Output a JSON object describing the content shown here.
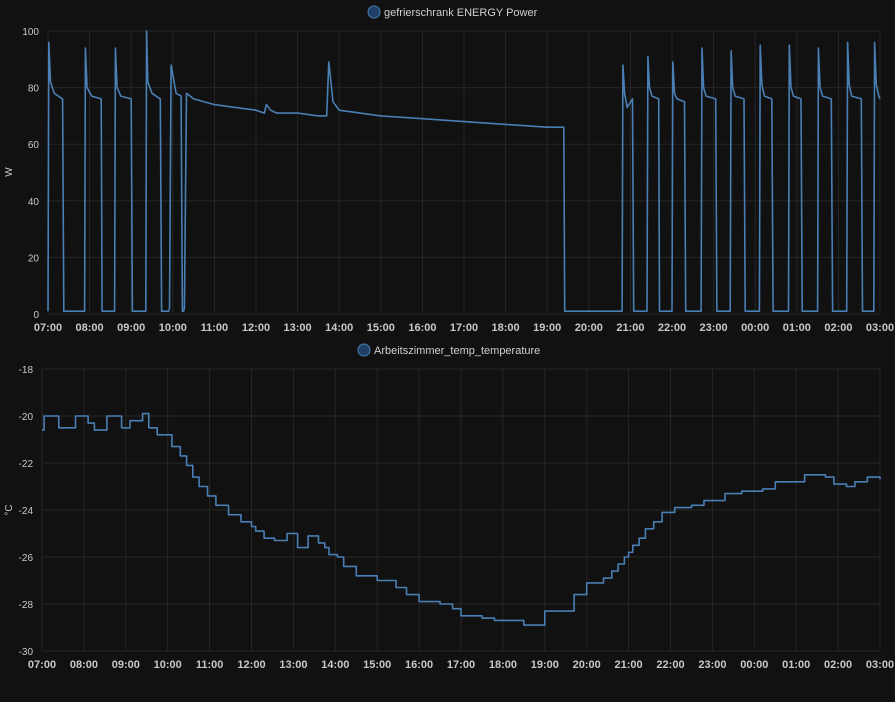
{
  "chart_data": [
    {
      "type": "line",
      "legend": "gefrierschrank ENERGY Power",
      "ylabel": "W",
      "ylim": [
        0,
        100
      ],
      "yticks": [
        0,
        20,
        40,
        60,
        80,
        100
      ],
      "xticks": [
        "07:00",
        "08:00",
        "09:00",
        "10:00",
        "11:00",
        "12:00",
        "13:00",
        "14:00",
        "15:00",
        "16:00",
        "17:00",
        "18:00",
        "19:00",
        "20:00",
        "21:00",
        "22:00",
        "23:00",
        "00:00",
        "01:00",
        "02:00",
        "03:00"
      ],
      "xlim_hours": [
        0,
        20
      ],
      "series": [
        {
          "color": "#4a7fb5",
          "x": [
            0.0,
            0.02,
            0.06,
            0.15,
            0.35,
            0.38,
            0.4,
            0.42,
            0.44,
            0.88,
            0.9,
            0.94,
            1.05,
            1.28,
            1.3,
            1.6,
            1.62,
            1.66,
            1.75,
            2.0,
            2.03,
            2.35,
            2.37,
            2.4,
            2.5,
            2.7,
            2.73,
            2.9,
            2.92,
            2.96,
            3.08,
            3.2,
            3.23,
            3.26,
            3.28,
            3.33,
            3.5,
            4.0,
            4.5,
            5.0,
            5.2,
            5.25,
            5.35,
            5.5,
            6.0,
            6.5,
            6.7,
            6.75,
            6.85,
            7.0,
            7.5,
            8.0,
            9.0,
            10.0,
            11.0,
            12.0,
            12.4,
            12.42,
            12.45,
            12.47,
            13.8,
            13.82,
            13.86,
            13.92,
            14.05,
            14.08,
            14.4,
            14.42,
            14.46,
            14.52,
            14.68,
            14.7,
            15.0,
            15.02,
            15.06,
            15.12,
            15.3,
            15.33,
            15.7,
            15.72,
            15.76,
            15.82,
            16.05,
            16.08,
            16.4,
            16.42,
            16.46,
            16.52,
            16.73,
            16.76,
            17.1,
            17.12,
            17.16,
            17.22,
            17.4,
            17.43,
            17.8,
            17.82,
            17.86,
            17.92,
            18.1,
            18.13,
            18.5,
            18.52,
            18.56,
            18.62,
            18.83,
            18.86,
            19.2,
            19.22,
            19.26,
            19.32,
            19.55,
            19.58,
            19.85,
            19.87,
            19.91,
            19.97,
            20.0
          ],
          "y": [
            1,
            96,
            82,
            78,
            76,
            1,
            1,
            1,
            1,
            1,
            94,
            80,
            77,
            76,
            1,
            1,
            94,
            80,
            77,
            76,
            1,
            1,
            100,
            82,
            78,
            76,
            1,
            1,
            2,
            88,
            78,
            77,
            1,
            1,
            2,
            78,
            76,
            74,
            73,
            72,
            71,
            74,
            72,
            71,
            71,
            70,
            70,
            89,
            75,
            72,
            71,
            70,
            69,
            68,
            67,
            66,
            66,
            1,
            1,
            1,
            1,
            88,
            78,
            73,
            76,
            1,
            1,
            91,
            80,
            77,
            76,
            1,
            1,
            89,
            78,
            76,
            75,
            1,
            1,
            94,
            80,
            77,
            76,
            1,
            1,
            93,
            80,
            77,
            76,
            1,
            1,
            95,
            81,
            77,
            76,
            1,
            1,
            95,
            80,
            77,
            76,
            1,
            1,
            94,
            80,
            77,
            76,
            1,
            1,
            96,
            81,
            77,
            76,
            1,
            1,
            96,
            81,
            77,
            76
          ],
          "step": false
        }
      ]
    },
    {
      "type": "line",
      "legend": "Arbeitszimmer_temp_temperature",
      "ylabel": "°C",
      "ylim": [
        -30,
        -18
      ],
      "yticks": [
        -18,
        -20,
        -22,
        -24,
        -26,
        -28,
        -30
      ],
      "xticks": [
        "07:00",
        "08:00",
        "09:00",
        "10:00",
        "11:00",
        "12:00",
        "13:00",
        "14:00",
        "15:00",
        "16:00",
        "17:00",
        "18:00",
        "19:00",
        "20:00",
        "21:00",
        "22:00",
        "23:00",
        "00:00",
        "01:00",
        "02:00",
        "03:00"
      ],
      "xlim_hours": [
        0,
        20
      ],
      "series": [
        {
          "color": "#4a7fb5",
          "x": [
            0.0,
            0.05,
            0.4,
            0.8,
            1.1,
            1.25,
            1.55,
            1.9,
            2.1,
            2.4,
            2.55,
            2.75,
            3.1,
            3.3,
            3.45,
            3.6,
            3.75,
            3.95,
            4.15,
            4.45,
            4.75,
            5.0,
            5.1,
            5.3,
            5.55,
            5.85,
            6.1,
            6.35,
            6.6,
            6.75,
            6.85,
            7.05,
            7.2,
            7.5,
            8.0,
            8.45,
            8.7,
            9.0,
            9.5,
            9.8,
            10.0,
            10.5,
            10.8,
            11.0,
            11.5,
            12.0,
            12.7,
            13.0,
            13.4,
            13.6,
            13.75,
            13.9,
            14.0,
            14.1,
            14.25,
            14.4,
            14.6,
            14.8,
            15.1,
            15.5,
            15.8,
            16.3,
            16.7,
            17.2,
            17.5,
            18.2,
            18.7,
            18.9,
            19.2,
            19.4,
            19.7,
            19.85,
            20.0
          ],
          "y": [
            -20.6,
            -20.0,
            -20.5,
            -20.0,
            -20.3,
            -20.6,
            -20.0,
            -20.5,
            -20.2,
            -19.9,
            -20.5,
            -20.8,
            -21.3,
            -21.7,
            -22.1,
            -22.6,
            -23.0,
            -23.4,
            -23.8,
            -24.2,
            -24.5,
            -24.7,
            -24.9,
            -25.2,
            -25.3,
            -25.0,
            -25.6,
            -25.1,
            -25.4,
            -25.6,
            -25.9,
            -26.0,
            -26.4,
            -26.8,
            -27.0,
            -27.3,
            -27.6,
            -27.9,
            -28.0,
            -28.2,
            -28.5,
            -28.6,
            -28.7,
            -28.7,
            -28.9,
            -28.3,
            -27.6,
            -27.1,
            -26.9,
            -26.6,
            -26.3,
            -26.0,
            -25.8,
            -25.5,
            -25.2,
            -24.8,
            -24.5,
            -24.1,
            -23.9,
            -23.8,
            -23.6,
            -23.3,
            -23.2,
            -23.1,
            -22.8,
            -22.5,
            -22.6,
            -22.9,
            -23.0,
            -22.8,
            -22.6,
            -22.6,
            -22.7
          ],
          "step": true
        }
      ]
    }
  ]
}
